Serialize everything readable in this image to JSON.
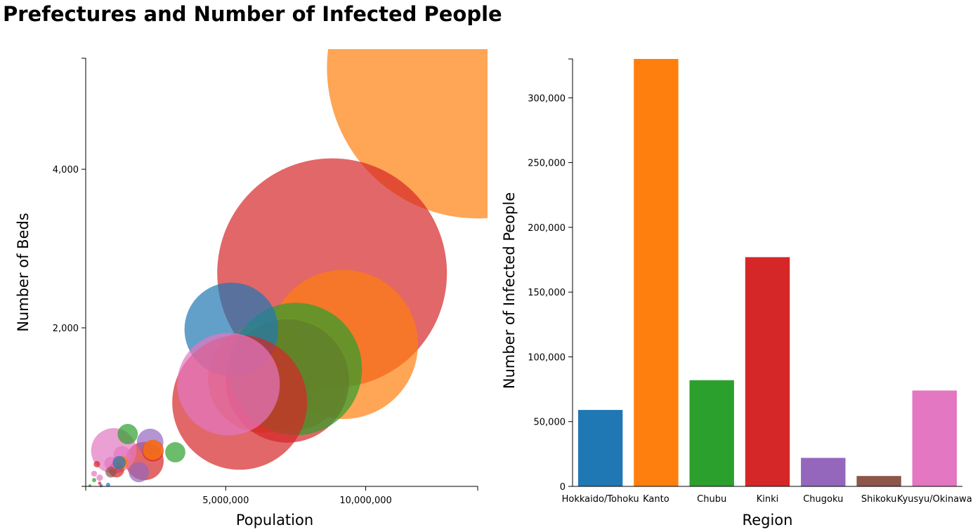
{
  "page": {
    "title": "Prefectures and Number of Infected People"
  },
  "chart_data": [
    {
      "type": "scatter",
      "subtype": "bubble",
      "xlabel": "Population",
      "ylabel": "Number of Beds",
      "xlim": [
        0,
        14000000
      ],
      "ylim": [
        0,
        5400
      ],
      "x_ticks": [
        5000000,
        10000000
      ],
      "x_tick_labels": [
        "5,000,000",
        "10,000,000"
      ],
      "y_ticks": [
        2000,
        4000
      ],
      "y_tick_labels": [
        "2,000",
        "4,000"
      ],
      "grid": false,
      "legend": "none",
      "colors": {
        "Hokkaido/Tohoku": "#1f77b4",
        "Kanto": "#ff7f0e",
        "Chubu": "#2ca02c",
        "Kinki": "#d62728",
        "Chugoku": "#9467bd",
        "Shikoku": "#8c564b",
        "Kyusyu/Okinawa": "#e377c2"
      },
      "size_encodes": "Number of infected people",
      "points": [
        {
          "region": "Kanto",
          "x": 14000000,
          "y": 5280,
          "size": 155000
        },
        {
          "region": "Kinki",
          "x": 8800000,
          "y": 2690,
          "size": 90000
        },
        {
          "region": "Kanto",
          "x": 9200000,
          "y": 1790,
          "size": 38000
        },
        {
          "region": "Kanto",
          "x": 7300000,
          "y": 1410,
          "size": 22000
        },
        {
          "region": "Kanto",
          "x": 6300000,
          "y": 1360,
          "size": 20000
        },
        {
          "region": "Kinki",
          "x": 7200000,
          "y": 1330,
          "size": 26000
        },
        {
          "region": "Chubu",
          "x": 7500000,
          "y": 1480,
          "size": 30000
        },
        {
          "region": "Hokkaido/Tohoku",
          "x": 5200000,
          "y": 1980,
          "size": 15000
        },
        {
          "region": "Kinki",
          "x": 5500000,
          "y": 1060,
          "size": 31000
        },
        {
          "region": "Kyusyu/Okinawa",
          "x": 5100000,
          "y": 1290,
          "size": 18000
        },
        {
          "region": "Kinki",
          "x": 2100000,
          "y": 320,
          "size": 2500
        },
        {
          "region": "Kyusyu/Okinawa",
          "x": 1000000,
          "y": 450,
          "size": 3500
        },
        {
          "region": "Chubu",
          "x": 1500000,
          "y": 660,
          "size": 700
        },
        {
          "region": "Chubu",
          "x": 3200000,
          "y": 430,
          "size": 700
        },
        {
          "region": "Chugoku",
          "x": 2300000,
          "y": 560,
          "size": 1200
        },
        {
          "region": "Kinki",
          "x": 2400000,
          "y": 450,
          "size": 800
        },
        {
          "region": "Kanto",
          "x": 2400000,
          "y": 460,
          "size": 700
        },
        {
          "region": "Chugoku",
          "x": 1900000,
          "y": 180,
          "size": 700
        },
        {
          "region": "Kyusyu/Okinawa",
          "x": 1300000,
          "y": 400,
          "size": 500
        },
        {
          "region": "Kinki",
          "x": 1100000,
          "y": 210,
          "size": 400
        },
        {
          "region": "Kyusyu/Okinawa",
          "x": 900000,
          "y": 290,
          "size": 300
        },
        {
          "region": "Kanto",
          "x": 1300000,
          "y": 300,
          "size": 300
        },
        {
          "region": "Hokkaido/Tohoku",
          "x": 1200000,
          "y": 300,
          "size": 300
        },
        {
          "region": "Shikoku",
          "x": 900000,
          "y": 180,
          "size": 200
        },
        {
          "region": "Kyusyu/Okinawa",
          "x": 500000,
          "y": 110,
          "size": 70
        },
        {
          "region": "Kinki",
          "x": 400000,
          "y": 280,
          "size": 70
        },
        {
          "region": "Kyusyu/Okinawa",
          "x": 300000,
          "y": 160,
          "size": 60
        },
        {
          "region": "Chubu",
          "x": 300000,
          "y": 80,
          "size": 30
        },
        {
          "region": "Hokkaido/Tohoku",
          "x": 800000,
          "y": 20,
          "size": 30
        },
        {
          "region": "Hokkaido/Tohoku",
          "x": 550000,
          "y": 10,
          "size": 20
        },
        {
          "region": "Chubu",
          "x": 150000,
          "y": 10,
          "size": 15
        },
        {
          "region": "Kinki",
          "x": 500000,
          "y": 40,
          "size": 20
        }
      ]
    },
    {
      "type": "bar",
      "xlabel": "Region",
      "ylabel": "Number of Infected People",
      "categories": [
        "Hokkaido/Tohoku",
        "Kanto",
        "Chubu",
        "Kinki",
        "Chugoku",
        "Shikoku",
        "Kyusyu/Okinawa"
      ],
      "values": [
        59000,
        330000,
        82000,
        177000,
        22000,
        8000,
        74000
      ],
      "colors": [
        "#1f77b4",
        "#ff7f0e",
        "#2ca02c",
        "#d62728",
        "#9467bd",
        "#8c564b",
        "#e377c2"
      ],
      "ylim": [
        0,
        330000
      ],
      "y_ticks": [
        0,
        50000,
        100000,
        150000,
        200000,
        250000,
        300000
      ],
      "y_tick_labels": [
        "0",
        "50,000",
        "100,000",
        "150,000",
        "200,000",
        "250,000",
        "300,000"
      ],
      "grid": false,
      "legend": "none"
    }
  ]
}
